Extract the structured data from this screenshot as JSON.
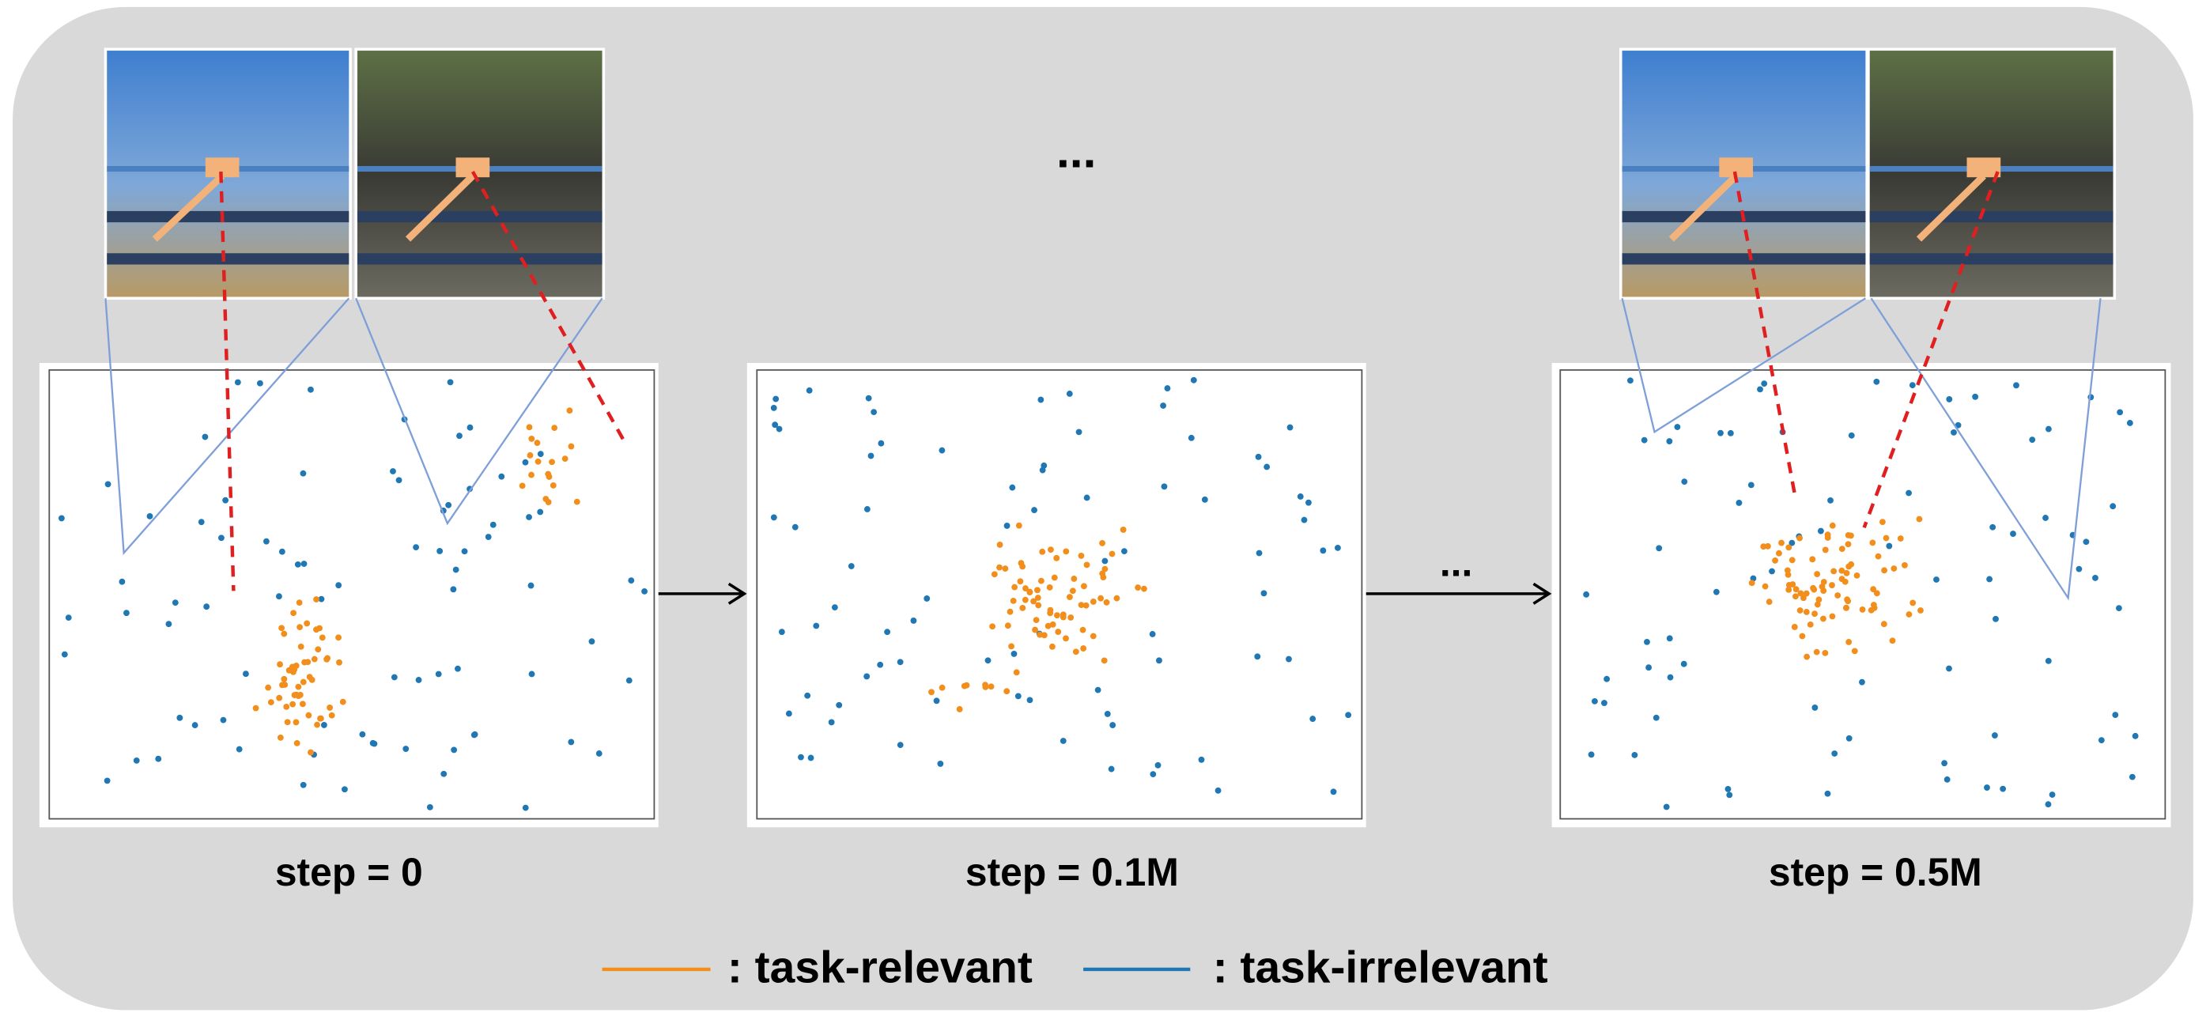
{
  "ellipsis_top": "...",
  "ellipsis_arrow": "...",
  "panels": [
    {
      "label": "step = 0"
    },
    {
      "label": "step = 0.1M"
    },
    {
      "label": "step = 0.5M"
    }
  ],
  "legend": [
    {
      "label": ": task-relevant",
      "color": "#f28e1c"
    },
    {
      "label": ": task-irrelevant",
      "color": "#1f77b4"
    }
  ]
}
